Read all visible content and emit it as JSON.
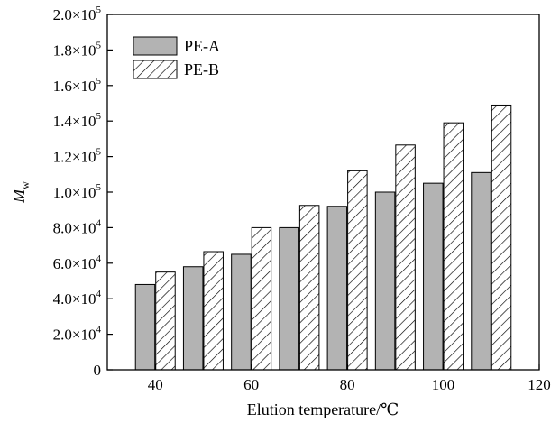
{
  "chart_data": {
    "type": "bar",
    "xlabel": "Elution temperature/℃",
    "ylabel": "M",
    "ylabel_sub": "w",
    "xlim": [
      30,
      120
    ],
    "ylim": [
      0,
      200000
    ],
    "x_ticks": [
      {
        "value": 40,
        "label": "40"
      },
      {
        "value": 60,
        "label": "60"
      },
      {
        "value": 80,
        "label": "80"
      },
      {
        "value": 100,
        "label": "100"
      },
      {
        "value": 120,
        "label": "120"
      }
    ],
    "y_ticks": [
      {
        "value": 0,
        "mant": "0",
        "exp": ""
      },
      {
        "value": 20000,
        "mant": "2.0×10",
        "exp": "4"
      },
      {
        "value": 40000,
        "mant": "4.0×10",
        "exp": "4"
      },
      {
        "value": 60000,
        "mant": "6.0×10",
        "exp": "4"
      },
      {
        "value": 80000,
        "mant": "8.0×10",
        "exp": "4"
      },
      {
        "value": 100000,
        "mant": "1.0×10",
        "exp": "5"
      },
      {
        "value": 120000,
        "mant": "1.2×10",
        "exp": "5"
      },
      {
        "value": 140000,
        "mant": "1.4×10",
        "exp": "5"
      },
      {
        "value": 160000,
        "mant": "1.6×10",
        "exp": "5"
      },
      {
        "value": 180000,
        "mant": "1.8×10",
        "exp": "5"
      },
      {
        "value": 200000,
        "mant": "2.0×10",
        "exp": "5"
      }
    ],
    "x": [
      40,
      50,
      60,
      70,
      80,
      90,
      100,
      110
    ],
    "series": [
      {
        "name": "PE-A",
        "fill": "#b3b3b3",
        "pattern": "solid",
        "values": [
          48000,
          58000,
          65000,
          80000,
          92000,
          100000,
          105000,
          111000
        ]
      },
      {
        "name": "PE-B",
        "fill": "#ffffff",
        "pattern": "hatch",
        "values": [
          55000,
          66500,
          80000,
          92500,
          112000,
          126500,
          139000,
          149000
        ]
      }
    ],
    "grid": false,
    "legend_position": "top-left"
  }
}
